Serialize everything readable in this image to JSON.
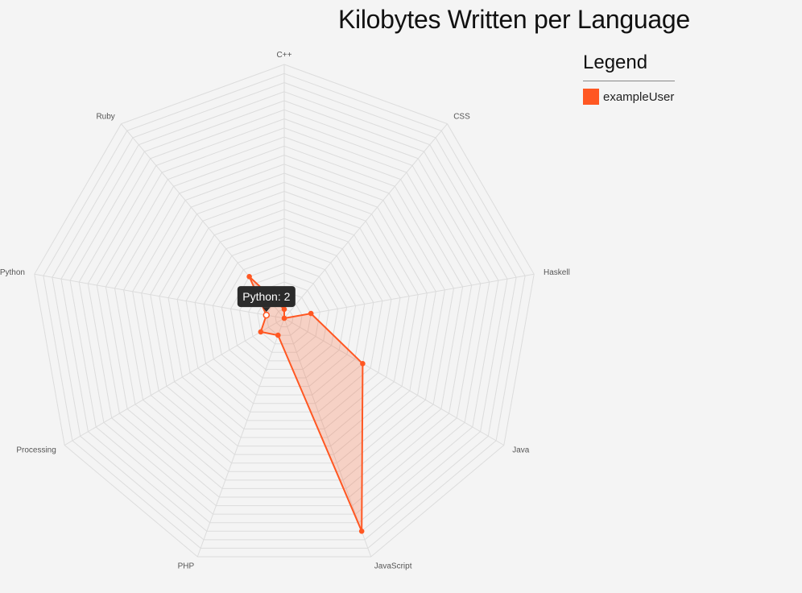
{
  "chart_data": {
    "type": "radar",
    "title": "Kilobytes Written per Language",
    "axes": [
      "C++",
      "CSS",
      "Haskell",
      "Java",
      "JavaScript",
      "PHP",
      "Processing",
      "Python",
      "Ruby"
    ],
    "series": [
      {
        "name": "exampleUser",
        "color": "#ff5722",
        "values": [
          1,
          0,
          3,
          10,
          25,
          2,
          3,
          2,
          6
        ]
      }
    ],
    "rmax": 28,
    "ring_count": 28,
    "grid": true,
    "legend_position": "top-right",
    "tooltip": {
      "text": "Python: 2"
    }
  },
  "legend": {
    "title": "Legend"
  }
}
